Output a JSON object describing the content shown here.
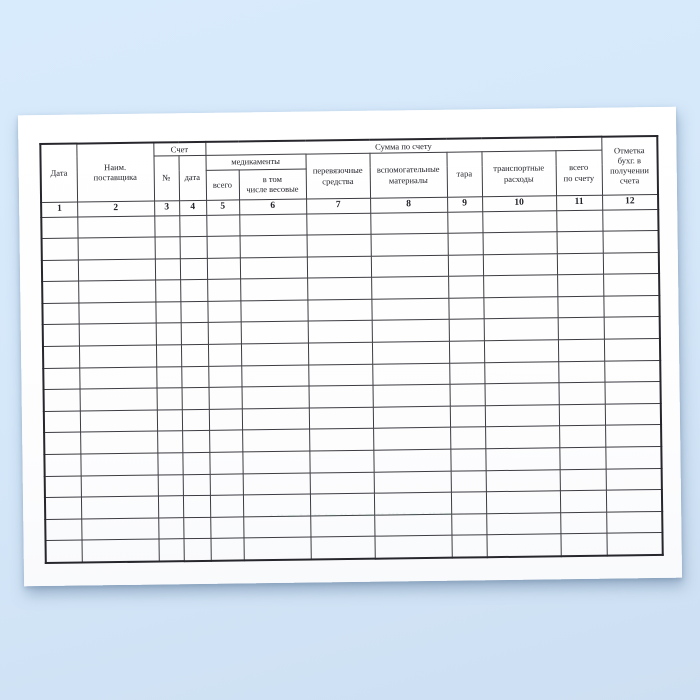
{
  "page": {
    "background_color": "#d5e8fa",
    "paper_color": "#ffffff",
    "line_color": "#3c3c42"
  },
  "table": {
    "header": {
      "col_date": "Дата",
      "col_supplier": "Наим.\nпоставщика",
      "group_account": "Счет",
      "col_account_no": "№",
      "col_account_date": "дата",
      "group_sum": "Сумма по счету",
      "group_medicines": "медикаменты",
      "col_med_total": "всего",
      "col_med_weight": "в том\nчисле весовые",
      "col_dressing": "перевязочные\nсредства",
      "col_aux": "вспомогательные\nматериалы",
      "col_tara": "тара",
      "col_transport": "транспортные\nрасходы",
      "col_row_total": "всего\nпо счету",
      "col_mark": "Отметка\nбухг. в\nполучении\nсчета"
    },
    "column_numbers": [
      "1",
      "2",
      "3",
      "4",
      "5",
      "6",
      "7",
      "8",
      "9",
      "10",
      "11",
      "12"
    ],
    "columns_count": 12,
    "empty_rows": 16
  },
  "watermark": {
    "text": "· ·· — · · ·· ·— ·· · · — ·· ··· · — · ·· ·— ·· — · ·",
    "color": "#2e9a66"
  }
}
